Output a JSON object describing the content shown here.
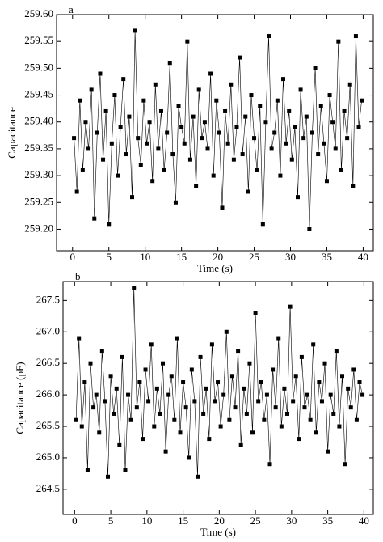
{
  "chart_data": [
    {
      "type": "line",
      "panel_label": "a",
      "ylabel": "Capacitance",
      "xlabel": "Time (s)",
      "color": "#000000",
      "marker": "square",
      "xlim": [
        -2.2,
        41.4
      ],
      "ylim": [
        259.16,
        259.6
      ],
      "xticks": [
        0,
        5,
        10,
        15,
        20,
        25,
        30,
        35,
        40
      ],
      "yticks": [
        {
          "value": 259.2,
          "label": "259.20"
        },
        259.25,
        {
          "value": 259.3,
          "label": "259.30"
        },
        259.35,
        {
          "value": 259.4,
          "label": "259.40"
        },
        259.45,
        {
          "value": 259.5,
          "label": "259.50"
        },
        259.55,
        {
          "value": 259.6,
          "label": "259.60"
        }
      ],
      "x": [
        0.2,
        0.6,
        1.0,
        1.4,
        1.8,
        2.2,
        2.6,
        3.0,
        3.4,
        3.8,
        4.2,
        4.6,
        5.0,
        5.4,
        5.8,
        6.2,
        6.6,
        7.0,
        7.4,
        7.8,
        8.2,
        8.6,
        9.0,
        9.4,
        9.8,
        10.2,
        10.6,
        11.0,
        11.4,
        11.8,
        12.2,
        12.6,
        13.0,
        13.4,
        13.8,
        14.2,
        14.6,
        15.0,
        15.4,
        15.8,
        16.2,
        16.6,
        17.0,
        17.4,
        17.8,
        18.2,
        18.6,
        19.0,
        19.4,
        19.8,
        20.2,
        20.6,
        21.0,
        21.4,
        21.8,
        22.2,
        22.6,
        23.0,
        23.4,
        23.8,
        24.2,
        24.6,
        25.0,
        25.4,
        25.8,
        26.2,
        26.6,
        27.0,
        27.4,
        27.8,
        28.2,
        28.6,
        29.0,
        29.4,
        29.8,
        30.2,
        30.6,
        31.0,
        31.4,
        31.8,
        32.2,
        32.6,
        33.0,
        33.4,
        33.8,
        34.2,
        34.6,
        35.0,
        35.4,
        35.8,
        36.2,
        36.6,
        37.0,
        37.4,
        37.8,
        38.2,
        38.6,
        39.0,
        39.4,
        39.8
      ],
      "values": [
        259.37,
        259.27,
        259.44,
        259.31,
        259.4,
        259.35,
        259.46,
        259.22,
        259.38,
        259.49,
        259.33,
        259.42,
        259.21,
        259.36,
        259.45,
        259.3,
        259.39,
        259.48,
        259.34,
        259.41,
        259.26,
        259.57,
        259.37,
        259.32,
        259.44,
        259.36,
        259.4,
        259.29,
        259.47,
        259.35,
        259.42,
        259.31,
        259.38,
        259.51,
        259.34,
        259.25,
        259.43,
        259.39,
        259.36,
        259.55,
        259.33,
        259.41,
        259.28,
        259.46,
        259.37,
        259.4,
        259.35,
        259.49,
        259.3,
        259.44,
        259.38,
        259.24,
        259.42,
        259.36,
        259.47,
        259.33,
        259.39,
        259.52,
        259.34,
        259.41,
        259.27,
        259.45,
        259.37,
        259.31,
        259.43,
        259.21,
        259.4,
        259.56,
        259.35,
        259.38,
        259.44,
        259.3,
        259.48,
        259.36,
        259.42,
        259.33,
        259.39,
        259.26,
        259.46,
        259.37,
        259.41,
        259.2,
        259.38,
        259.5,
        259.34,
        259.43,
        259.36,
        259.29,
        259.45,
        259.4,
        259.35,
        259.55,
        259.31,
        259.42,
        259.37,
        259.47,
        259.28,
        259.56,
        259.39,
        259.44
      ]
    },
    {
      "type": "line",
      "panel_label": "b",
      "ylabel": "Capacitance (pF)",
      "xlabel": "Time (s)",
      "color": "#000000",
      "marker": "square",
      "xlim": [
        -1.6,
        41.3
      ],
      "ylim": [
        264.1,
        267.8
      ],
      "xticks": [
        0,
        5,
        10,
        15,
        20,
        25,
        30,
        35,
        40
      ],
      "yticks": [
        264.5,
        {
          "value": 265,
          "label": "265.0"
        },
        265.5,
        {
          "value": 266,
          "label": "266.0"
        },
        266.5,
        {
          "value": 267,
          "label": "267.0"
        },
        267.5
      ],
      "x": [
        0.2,
        0.6,
        1.0,
        1.4,
        1.8,
        2.2,
        2.6,
        3.0,
        3.4,
        3.8,
        4.2,
        4.6,
        5.0,
        5.4,
        5.8,
        6.2,
        6.6,
        7.0,
        7.4,
        7.8,
        8.2,
        8.6,
        9.0,
        9.4,
        9.8,
        10.2,
        10.6,
        11.0,
        11.4,
        11.8,
        12.2,
        12.6,
        13.0,
        13.4,
        13.8,
        14.2,
        14.6,
        15.0,
        15.4,
        15.8,
        16.2,
        16.6,
        17.0,
        17.4,
        17.8,
        18.2,
        18.6,
        19.0,
        19.4,
        19.8,
        20.2,
        20.6,
        21.0,
        21.4,
        21.8,
        22.2,
        22.6,
        23.0,
        23.4,
        23.8,
        24.2,
        24.6,
        25.0,
        25.4,
        25.8,
        26.2,
        26.6,
        27.0,
        27.4,
        27.8,
        28.2,
        28.6,
        29.0,
        29.4,
        29.8,
        30.2,
        30.6,
        31.0,
        31.4,
        31.8,
        32.2,
        32.6,
        33.0,
        33.4,
        33.8,
        34.2,
        34.6,
        35.0,
        35.4,
        35.8,
        36.2,
        36.6,
        37.0,
        37.4,
        37.8,
        38.2,
        38.6,
        39.0,
        39.4,
        39.8
      ],
      "values": [
        265.6,
        266.9,
        265.5,
        266.2,
        264.8,
        266.5,
        265.8,
        266.0,
        265.4,
        266.7,
        265.9,
        264.7,
        266.3,
        265.7,
        266.1,
        265.2,
        266.6,
        264.8,
        266.0,
        265.6,
        267.7,
        265.8,
        266.2,
        265.3,
        266.4,
        265.9,
        266.8,
        265.5,
        266.1,
        265.7,
        266.5,
        265.1,
        266.0,
        266.3,
        265.6,
        266.9,
        265.4,
        266.2,
        265.8,
        265.0,
        266.4,
        265.9,
        264.7,
        266.6,
        265.7,
        266.1,
        265.3,
        266.8,
        265.9,
        266.2,
        265.5,
        266.0,
        267.0,
        265.6,
        266.3,
        265.8,
        266.7,
        265.2,
        266.1,
        265.7,
        266.5,
        265.4,
        267.3,
        265.9,
        266.2,
        265.6,
        266.0,
        264.9,
        266.4,
        265.8,
        266.9,
        265.5,
        266.1,
        265.7,
        267.4,
        265.9,
        266.3,
        265.3,
        266.6,
        265.8,
        266.0,
        265.6,
        266.8,
        265.4,
        266.2,
        265.9,
        266.5,
        265.1,
        266.0,
        265.7,
        266.7,
        265.5,
        266.3,
        264.9,
        266.1,
        265.8,
        266.4,
        265.6,
        266.2,
        266.0
      ]
    }
  ]
}
